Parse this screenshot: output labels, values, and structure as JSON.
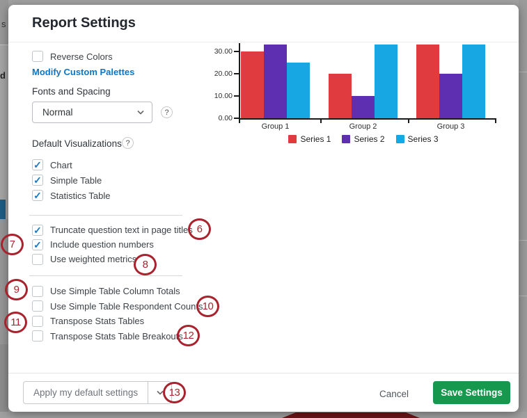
{
  "modal": {
    "title": "Report Settings",
    "footer": {
      "apply_button": "Apply my default settings",
      "cancel": "Cancel",
      "save": "Save Settings"
    }
  },
  "settings": {
    "reverse_colors": {
      "label": "Reverse Colors",
      "checked": false
    },
    "modify_palettes_link": "Modify Custom Palettes",
    "fonts_and_spacing": {
      "label": "Fonts and Spacing",
      "value": "Normal",
      "help_icon": "?"
    },
    "default_visualizations": {
      "label": "Default Visualizations",
      "help_icon": "?",
      "items": [
        {
          "label": "Chart",
          "checked": true
        },
        {
          "label": "Simple Table",
          "checked": true
        },
        {
          "label": "Statistics Table",
          "checked": true
        }
      ]
    },
    "page_options": [
      {
        "label": "Truncate question text in page titles",
        "checked": true
      },
      {
        "label": "Include question numbers",
        "checked": true
      },
      {
        "label": "Use weighted metrics",
        "checked": false
      }
    ],
    "table_options": [
      {
        "label": "Use Simple Table Column Totals",
        "checked": false
      },
      {
        "label": "Use Simple Table Respondent Counts",
        "checked": false
      },
      {
        "label": "Transpose Stats Tables",
        "checked": false
      },
      {
        "label": "Transpose Stats Table Breakouts",
        "checked": false
      }
    ]
  },
  "annotations": {
    "color": "#a8232e",
    "numbers": [
      "6",
      "7",
      "8",
      "9",
      "10",
      "11",
      "12",
      "13"
    ]
  },
  "chart_data": {
    "type": "bar",
    "categories": [
      "Group 1",
      "Group 2",
      "Group 3"
    ],
    "series": [
      {
        "name": "Series 1",
        "color": "#e03c3f",
        "values": [
          30,
          20,
          33
        ]
      },
      {
        "name": "Series 2",
        "color": "#5e2fb0",
        "values": [
          33,
          10,
          20
        ]
      },
      {
        "name": "Series 3",
        "color": "#17a8e4",
        "values": [
          25,
          33,
          33
        ]
      }
    ],
    "yticks": [
      "30.00",
      "20.00",
      "10.00",
      "0.00"
    ],
    "ylim": [
      0,
      33.75
    ],
    "grid": false,
    "legend_position": "bottom"
  },
  "background": {
    "left_text_fragments": [
      "s",
      "d I"
    ],
    "accent_bar_color": "#1d5c85",
    "bottom_shape_color": "#6d1517"
  },
  "colors": {
    "link_blue": "#0c76c4",
    "checkmark_blue": "#1478c8",
    "save_green": "#16984e",
    "annotation_red": "#a8232e"
  }
}
